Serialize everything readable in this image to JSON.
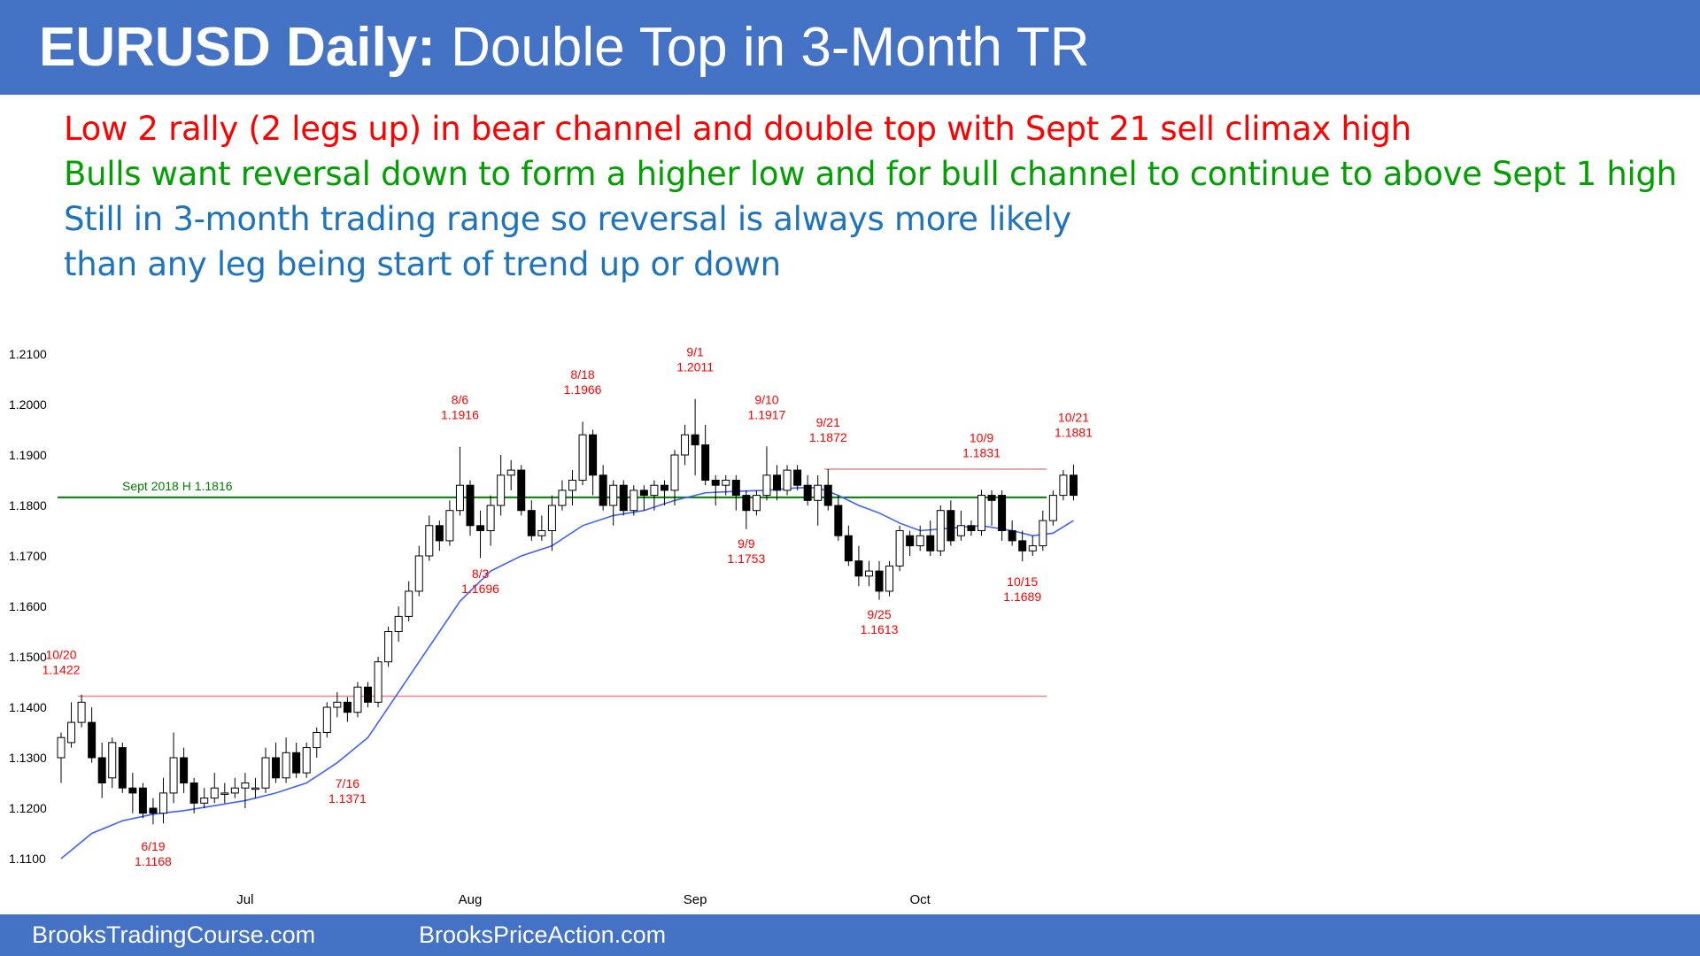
{
  "header": {
    "title_bold": "EURUSD Daily:",
    "title_rest": "Double Top in 3-Month TR"
  },
  "notes": [
    {
      "text": "Low 2 rally (2 legs up) in bear channel and double top with Sept 21 sell climax high",
      "color": "#ff0000"
    },
    {
      "text": "Bulls want reversal down to form a higher low and for bull channel to continue to above Sept 1 high",
      "color": "#00a000"
    },
    {
      "text": "Still in 3-month trading range so reversal is always more likely",
      "color": "#1e73be"
    },
    {
      "text": "than any leg being start of trend up or down",
      "color": "#1e73be"
    }
  ],
  "footer": {
    "left": "BrooksTradingCourse.com",
    "right": "BrooksPriceAction.com"
  },
  "colors": {
    "header_bg": "#4472c4",
    "annotation": "#ff0000",
    "ema": "#4060ff",
    "support_line": "#008000",
    "range_line": "#ff8080"
  },
  "chart_data": {
    "type": "candlestick",
    "title": "",
    "ylim": [
      1.108,
      1.212
    ],
    "yticks": [
      "1.2100",
      "1.2000",
      "1.1900",
      "1.1800",
      "1.1700",
      "1.1600",
      "1.1500",
      "1.1400",
      "1.1300",
      "1.1200",
      "1.1100"
    ],
    "xticks": [
      {
        "label": "Jul",
        "index": 18
      },
      {
        "label": "Aug",
        "index": 40
      },
      {
        "label": "Sep",
        "index": 62
      },
      {
        "label": "Oct",
        "index": 84
      }
    ],
    "candles": [
      [
        1.13,
        1.134,
        1.125,
        1.135
      ],
      [
        1.133,
        1.137,
        1.132,
        1.141
      ],
      [
        1.137,
        1.141,
        1.136,
        1.1425
      ],
      [
        1.137,
        1.13,
        1.129,
        1.14
      ],
      [
        1.13,
        1.125,
        1.122,
        1.133
      ],
      [
        1.126,
        1.133,
        1.124,
        1.134
      ],
      [
        1.132,
        1.124,
        1.123,
        1.133
      ],
      [
        1.124,
        1.123,
        1.119,
        1.127
      ],
      [
        1.124,
        1.119,
        1.118,
        1.125
      ],
      [
        1.12,
        1.119,
        1.1168,
        1.122
      ],
      [
        1.119,
        1.123,
        1.117,
        1.126
      ],
      [
        1.123,
        1.13,
        1.121,
        1.135
      ],
      [
        1.13,
        1.125,
        1.123,
        1.132
      ],
      [
        1.125,
        1.121,
        1.119,
        1.126
      ],
      [
        1.121,
        1.122,
        1.12,
        1.124
      ],
      [
        1.122,
        1.124,
        1.121,
        1.127
      ],
      [
        1.123,
        1.123,
        1.121,
        1.125
      ],
      [
        1.123,
        1.124,
        1.122,
        1.126
      ],
      [
        1.124,
        1.125,
        1.12,
        1.127
      ],
      [
        1.124,
        1.124,
        1.122,
        1.126
      ],
      [
        1.124,
        1.13,
        1.123,
        1.132
      ],
      [
        1.13,
        1.126,
        1.125,
        1.133
      ],
      [
        1.126,
        1.131,
        1.125,
        1.134
      ],
      [
        1.131,
        1.127,
        1.126,
        1.133
      ],
      [
        1.127,
        1.132,
        1.126,
        1.133
      ],
      [
        1.132,
        1.135,
        1.13,
        1.136
      ],
      [
        1.135,
        1.14,
        1.134,
        1.141
      ],
      [
        1.14,
        1.141,
        1.138,
        1.143
      ],
      [
        1.141,
        1.139,
        1.1371,
        1.142
      ],
      [
        1.139,
        1.144,
        1.138,
        1.145
      ],
      [
        1.144,
        1.141,
        1.14,
        1.145
      ],
      [
        1.141,
        1.149,
        1.14,
        1.15
      ],
      [
        1.149,
        1.155,
        1.148,
        1.156
      ],
      [
        1.155,
        1.158,
        1.153,
        1.16
      ],
      [
        1.158,
        1.163,
        1.157,
        1.165
      ],
      [
        1.163,
        1.17,
        1.162,
        1.172
      ],
      [
        1.17,
        1.176,
        1.169,
        1.178
      ],
      [
        1.176,
        1.173,
        1.171,
        1.177
      ],
      [
        1.173,
        1.179,
        1.172,
        1.181
      ],
      [
        1.179,
        1.184,
        1.178,
        1.1916
      ],
      [
        1.184,
        1.176,
        1.174,
        1.185
      ],
      [
        1.176,
        1.175,
        1.1696,
        1.179
      ],
      [
        1.175,
        1.18,
        1.172,
        1.182
      ],
      [
        1.18,
        1.186,
        1.178,
        1.19
      ],
      [
        1.186,
        1.187,
        1.183,
        1.189
      ],
      [
        1.187,
        1.179,
        1.178,
        1.188
      ],
      [
        1.179,
        1.174,
        1.173,
        1.181
      ],
      [
        1.174,
        1.175,
        1.173,
        1.178
      ],
      [
        1.175,
        1.18,
        1.171,
        1.182
      ],
      [
        1.18,
        1.183,
        1.179,
        1.185
      ],
      [
        1.183,
        1.185,
        1.18,
        1.187
      ],
      [
        1.185,
        1.194,
        1.184,
        1.1966
      ],
      [
        1.194,
        1.186,
        1.182,
        1.195
      ],
      [
        1.186,
        1.18,
        1.179,
        1.188
      ],
      [
        1.18,
        1.184,
        1.176,
        1.185
      ],
      [
        1.184,
        1.179,
        1.178,
        1.185
      ],
      [
        1.179,
        1.183,
        1.178,
        1.184
      ],
      [
        1.183,
        1.182,
        1.179,
        1.184
      ],
      [
        1.182,
        1.184,
        1.179,
        1.185
      ],
      [
        1.184,
        1.183,
        1.18,
        1.185
      ],
      [
        1.183,
        1.19,
        1.18,
        1.191
      ],
      [
        1.19,
        1.194,
        1.188,
        1.196
      ],
      [
        1.194,
        1.192,
        1.186,
        1.2011
      ],
      [
        1.192,
        1.185,
        1.184,
        1.196
      ],
      [
        1.185,
        1.184,
        1.18,
        1.186
      ],
      [
        1.184,
        1.185,
        1.182,
        1.186
      ],
      [
        1.185,
        1.182,
        1.179,
        1.186
      ],
      [
        1.182,
        1.179,
        1.1753,
        1.183
      ],
      [
        1.179,
        1.182,
        1.178,
        1.183
      ],
      [
        1.182,
        1.186,
        1.181,
        1.1917
      ],
      [
        1.186,
        1.183,
        1.181,
        1.188
      ],
      [
        1.183,
        1.187,
        1.182,
        1.188
      ],
      [
        1.187,
        1.184,
        1.183,
        1.188
      ],
      [
        1.184,
        1.181,
        1.18,
        1.186
      ],
      [
        1.181,
        1.184,
        1.176,
        1.186
      ],
      [
        1.184,
        1.18,
        1.179,
        1.1872
      ],
      [
        1.18,
        1.174,
        1.173,
        1.182
      ],
      [
        1.174,
        1.169,
        1.168,
        1.176
      ],
      [
        1.169,
        1.166,
        1.164,
        1.172
      ],
      [
        1.166,
        1.167,
        1.164,
        1.169
      ],
      [
        1.167,
        1.163,
        1.1613,
        1.169
      ],
      [
        1.163,
        1.168,
        1.162,
        1.169
      ],
      [
        1.168,
        1.175,
        1.167,
        1.176
      ],
      [
        1.174,
        1.172,
        1.17,
        1.175
      ],
      [
        1.172,
        1.174,
        1.171,
        1.176
      ],
      [
        1.174,
        1.171,
        1.17,
        1.177
      ],
      [
        1.171,
        1.179,
        1.17,
        1.18
      ],
      [
        1.179,
        1.173,
        1.172,
        1.181
      ],
      [
        1.174,
        1.176,
        1.173,
        1.179
      ],
      [
        1.176,
        1.175,
        1.174,
        1.177
      ],
      [
        1.175,
        1.182,
        1.174,
        1.1831
      ],
      [
        1.182,
        1.181,
        1.176,
        1.183
      ],
      [
        1.182,
        1.175,
        1.173,
        1.183
      ],
      [
        1.175,
        1.173,
        1.172,
        1.177
      ],
      [
        1.173,
        1.171,
        1.1689,
        1.175
      ],
      [
        1.171,
        1.172,
        1.17,
        1.174
      ],
      [
        1.172,
        1.177,
        1.171,
        1.179
      ],
      [
        1.177,
        1.182,
        1.176,
        1.183
      ],
      [
        1.182,
        1.186,
        1.181,
        1.187
      ],
      [
        1.186,
        1.182,
        1.181,
        1.1881
      ]
    ],
    "ema": [
      [
        0,
        1.11
      ],
      [
        3,
        1.115
      ],
      [
        6,
        1.1175
      ],
      [
        9,
        1.1188
      ],
      [
        12,
        1.1195
      ],
      [
        15,
        1.1205
      ],
      [
        18,
        1.1215
      ],
      [
        21,
        1.123
      ],
      [
        24,
        1.125
      ],
      [
        27,
        1.129
      ],
      [
        30,
        1.134
      ],
      [
        33,
        1.143
      ],
      [
        36,
        1.152
      ],
      [
        39,
        1.161
      ],
      [
        42,
        1.167
      ],
      [
        45,
        1.17
      ],
      [
        48,
        1.172
      ],
      [
        51,
        1.176
      ],
      [
        54,
        1.178
      ],
      [
        57,
        1.179
      ],
      [
        60,
        1.181
      ],
      [
        63,
        1.1825
      ],
      [
        66,
        1.1828
      ],
      [
        69,
        1.183
      ],
      [
        72,
        1.1835
      ],
      [
        74,
        1.1835
      ],
      [
        76,
        1.182
      ],
      [
        78,
        1.18
      ],
      [
        80,
        1.1785
      ],
      [
        82,
        1.1765
      ],
      [
        84,
        1.175
      ],
      [
        87,
        1.1755
      ],
      [
        90,
        1.176
      ],
      [
        93,
        1.175
      ],
      [
        95,
        1.174
      ],
      [
        97,
        1.1745
      ],
      [
        99,
        1.177
      ]
    ],
    "hlines": [
      {
        "value": 1.1816,
        "label": "Sept 2018 H 1.1816",
        "start": 0,
        "end": 100,
        "color": "#008000"
      },
      {
        "value": 1.1422,
        "label": "",
        "start": 2,
        "end": 100,
        "color": "#ff8080"
      },
      {
        "value": 1.1872,
        "label": "",
        "start": 75,
        "end": 100,
        "color": "#ff8080"
      }
    ],
    "annotations": [
      {
        "date": "10/20",
        "price": "1.1422",
        "index": 0,
        "price_pos": 1.148
      },
      {
        "date": "6/19",
        "price": "1.1168",
        "index": 9,
        "price_pos": 1.11
      },
      {
        "date": "7/16",
        "price": "1.1371",
        "index": 28,
        "price_pos": 1.1225
      },
      {
        "date": "8/3",
        "price": "1.1696",
        "index": 41,
        "price_pos": 1.164
      },
      {
        "date": "8/6",
        "price": "1.1916",
        "index": 39,
        "price_pos": 1.1985
      },
      {
        "date": "8/18",
        "price": "1.1966",
        "index": 51,
        "price_pos": 1.2035
      },
      {
        "date": "9/1",
        "price": "1.2011",
        "index": 62,
        "price_pos": 1.208
      },
      {
        "date": "9/10",
        "price": "1.1917",
        "index": 69,
        "price_pos": 1.1985
      },
      {
        "date": "9/9",
        "price": "1.1753",
        "index": 67,
        "price_pos": 1.17
      },
      {
        "date": "9/21",
        "price": "1.1872",
        "index": 75,
        "price_pos": 1.194
      },
      {
        "date": "9/25",
        "price": "1.1613",
        "index": 80,
        "price_pos": 1.156
      },
      {
        "date": "10/9",
        "price": "1.1831",
        "index": 90,
        "price_pos": 1.191
      },
      {
        "date": "10/15",
        "price": "1.1689",
        "index": 94,
        "price_pos": 1.1625
      },
      {
        "date": "10/21",
        "price": "1.1881",
        "index": 99,
        "price_pos": 1.195
      }
    ]
  }
}
